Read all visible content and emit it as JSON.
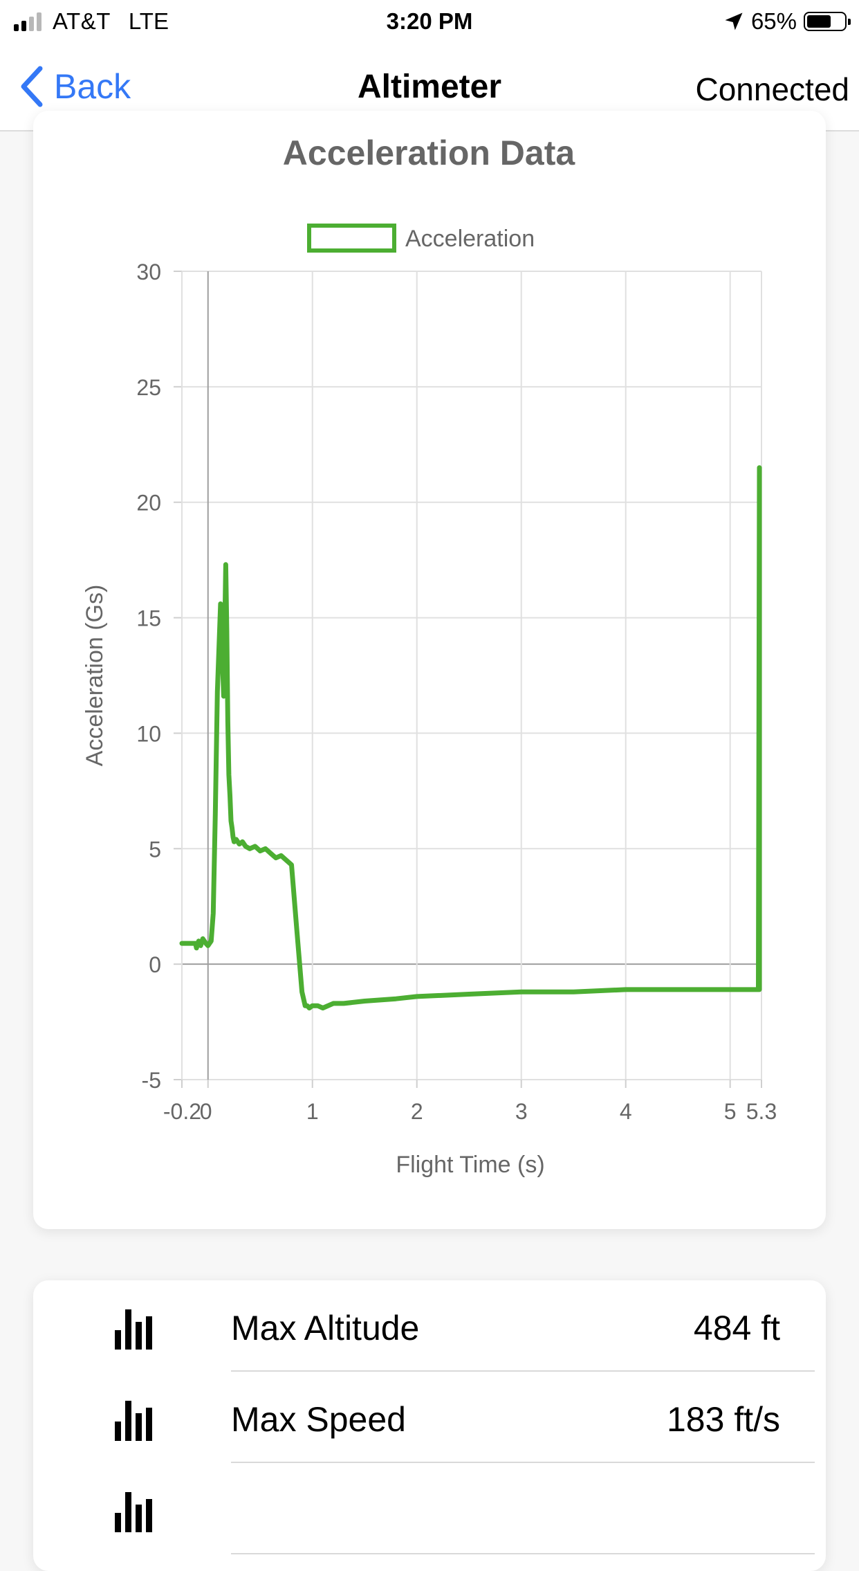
{
  "status_bar": {
    "carrier": "AT&T",
    "network": "LTE",
    "time": "3:20 PM",
    "battery_percent": "65%",
    "battery_level": 0.65,
    "icons": [
      "signal-icon",
      "location-arrow-icon",
      "battery-icon"
    ]
  },
  "nav": {
    "back_label": "Back",
    "title": "Altimeter",
    "right_label": "Connected",
    "accent_color": "#3478f6"
  },
  "chart_data": {
    "type": "line",
    "title": "Acceleration Data",
    "xlabel": "Flight Time (s)",
    "ylabel": "Acceleration (Gs)",
    "xlim": [
      -0.25,
      5.3
    ],
    "ylim": [
      -5,
      30
    ],
    "x_ticks": [
      -0.25,
      0,
      1,
      2,
      3,
      4,
      5,
      5.3
    ],
    "x_tick_labels": [
      "-0.2",
      "0",
      "1",
      "2",
      "3",
      "4",
      "5",
      "5.3"
    ],
    "y_ticks": [
      -5,
      0,
      5,
      10,
      15,
      20,
      25,
      30
    ],
    "y_tick_labels": [
      "-5",
      "0",
      "5",
      "10",
      "15",
      "20",
      "25",
      "30"
    ],
    "grid": true,
    "legend_position": "top-center",
    "series": [
      {
        "name": "Acceleration",
        "color": "#4cae32",
        "x": [
          -0.25,
          -0.12,
          -0.11,
          -0.09,
          -0.07,
          -0.05,
          -0.02,
          0.0,
          0.03,
          0.05,
          0.07,
          0.09,
          0.12,
          0.15,
          0.17,
          0.18,
          0.19,
          0.2,
          0.21,
          0.22,
          0.23,
          0.24,
          0.25,
          0.27,
          0.3,
          0.33,
          0.36,
          0.4,
          0.45,
          0.5,
          0.55,
          0.6,
          0.65,
          0.7,
          0.75,
          0.8,
          0.85,
          0.9,
          0.93,
          0.95,
          0.97,
          1.0,
          1.05,
          1.1,
          1.2,
          1.3,
          1.5,
          1.8,
          2.0,
          2.5,
          3.0,
          3.5,
          4.0,
          4.5,
          5.0,
          5.27,
          5.28,
          5.28
        ],
        "y": [
          0.9,
          0.9,
          0.7,
          1.0,
          0.8,
          1.1,
          0.9,
          0.8,
          1.0,
          2.2,
          6.5,
          11.8,
          15.6,
          11.6,
          17.3,
          14.5,
          10.5,
          8.2,
          7.3,
          6.2,
          5.9,
          5.5,
          5.3,
          5.4,
          5.2,
          5.3,
          5.1,
          5.0,
          5.1,
          4.9,
          5.0,
          4.8,
          4.6,
          4.7,
          4.5,
          4.3,
          1.5,
          -1.2,
          -1.8,
          -1.8,
          -1.9,
          -1.8,
          -1.8,
          -1.9,
          -1.7,
          -1.7,
          -1.6,
          -1.5,
          -1.4,
          -1.3,
          -1.2,
          -1.2,
          -1.1,
          -1.1,
          -1.1,
          -1.1,
          21.5,
          -1.1
        ]
      }
    ]
  },
  "stats": [
    {
      "icon": "bar-chart-icon",
      "label": "Max Altitude",
      "value": "484 ft"
    },
    {
      "icon": "bar-chart-icon",
      "label": "Max Speed",
      "value": "183 ft/s"
    },
    {
      "icon": "bar-chart-icon",
      "label": "",
      "value": ""
    }
  ]
}
